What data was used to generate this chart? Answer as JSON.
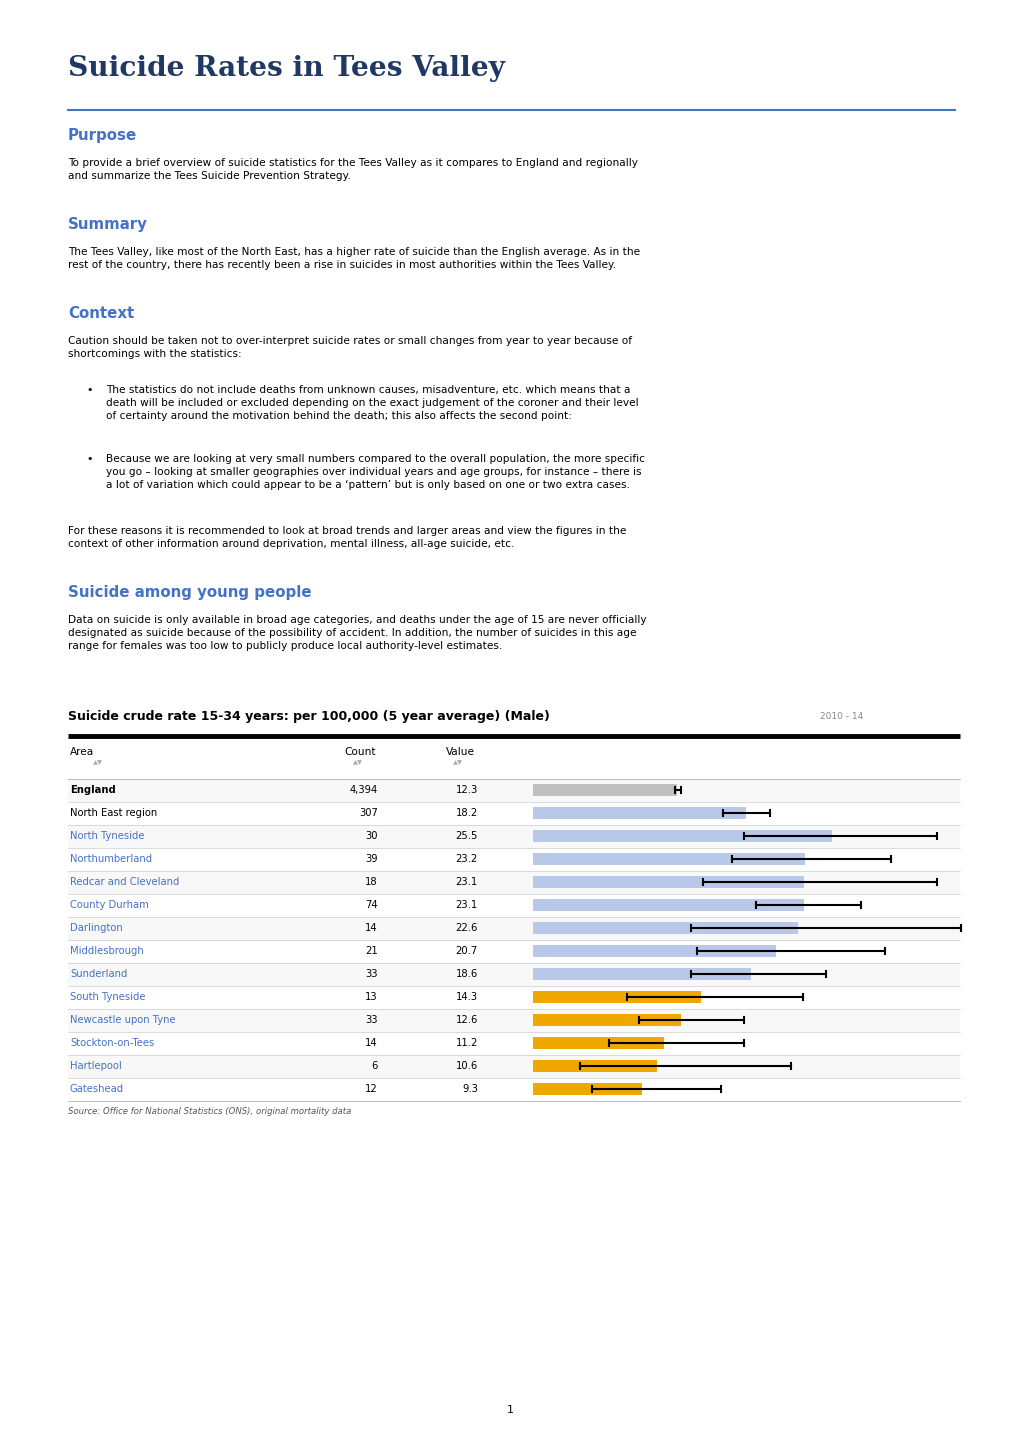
{
  "title": "Suicide Rates in Tees Valley",
  "title_color": "#1f3864",
  "separator_color": "#4472c4",
  "section_heading_color": "#4472c4",
  "body_text_color": "#000000",
  "page_bg": "#ffffff",
  "sections": [
    {
      "heading": "Purpose",
      "text": "To provide a brief overview of suicide statistics for the Tees Valley as it compares to England and regionally\nand summarize the Tees Suicide Prevention Strategy."
    },
    {
      "heading": "Summary",
      "text": "The Tees Valley, like most of the North East, has a higher rate of suicide than the English average. As in the\nrest of the country, there has recently been a rise in suicides in most authorities within the Tees Valley."
    },
    {
      "heading": "Context",
      "text": "Caution should be taken not to over-interpret suicide rates or small changes from year to year because of\nshortcomings with the statistics:",
      "bullets": [
        "The statistics do not include deaths from unknown causes, misadventure, etc. which means that a\ndeath will be included or excluded depending on the exact judgement of the coroner and their level\nof certainty around the motivation behind the death; this also affects the second point:",
        "Because we are looking at very small numbers compared to the overall population, the more specific\nyou go – looking at smaller geographies over individual years and age groups, for instance – there is\na lot of variation which could appear to be a ‘pattern’ but is only based on one or two extra cases."
      ],
      "posttext": "For these reasons it is recommended to look at broad trends and larger areas and view the figures in the\ncontext of other information around deprivation, mental illness, all-age suicide, etc."
    },
    {
      "heading": "Suicide among young people",
      "text": "Data on suicide is only available in broad age categories, and deaths under the age of 15 are never officially\ndesignated as suicide because of the possibility of accident. In addition, the number of suicides in this age\nrange for females was too low to publicly produce local authority-level estimates."
    }
  ],
  "chart_title": "Suicide crude rate 15-34 years: per 100,000 (5 year average) (Male)",
  "chart_year": "2010 - 14",
  "chart_data": [
    {
      "area": "England",
      "count": "4,394",
      "value": "12.3",
      "val_f": 12.3,
      "ci_lo": 12.1,
      "ci_hi": 12.6,
      "bar_color": "#c0c0c0",
      "area_bold": true,
      "area_color": "#000000"
    },
    {
      "area": "North East region",
      "count": "307",
      "value": "18.2",
      "val_f": 18.2,
      "ci_lo": 16.2,
      "ci_hi": 20.2,
      "bar_color": "#b8c8e8",
      "area_bold": false,
      "area_color": "#000000"
    },
    {
      "area": "North Tyneside",
      "count": "30",
      "value": "25.5",
      "val_f": 25.5,
      "ci_lo": 18.0,
      "ci_hi": 34.5,
      "bar_color": "#b8c8e8",
      "area_bold": false,
      "area_color": "#4472c4"
    },
    {
      "area": "Northumberland",
      "count": "39",
      "value": "23.2",
      "val_f": 23.2,
      "ci_lo": 17.0,
      "ci_hi": 30.5,
      "bar_color": "#b8c8e8",
      "area_bold": false,
      "area_color": "#4472c4"
    },
    {
      "area": "Redcar and Cleveland",
      "count": "18",
      "value": "23.1",
      "val_f": 23.1,
      "ci_lo": 14.5,
      "ci_hi": 34.5,
      "bar_color": "#b8c8e8",
      "area_bold": false,
      "area_color": "#4472c4"
    },
    {
      "area": "County Durham",
      "count": "74",
      "value": "23.1",
      "val_f": 23.1,
      "ci_lo": 19.0,
      "ci_hi": 28.0,
      "bar_color": "#b8c8e8",
      "area_bold": false,
      "area_color": "#4472c4"
    },
    {
      "area": "Darlington",
      "count": "14",
      "value": "22.6",
      "val_f": 22.6,
      "ci_lo": 13.5,
      "ci_hi": 36.5,
      "bar_color": "#b8c8e8",
      "area_bold": false,
      "area_color": "#4472c4"
    },
    {
      "area": "Middlesbrough",
      "count": "21",
      "value": "20.7",
      "val_f": 20.7,
      "ci_lo": 14.0,
      "ci_hi": 30.0,
      "bar_color": "#b8c8e8",
      "area_bold": false,
      "area_color": "#4472c4"
    },
    {
      "area": "Sunderland",
      "count": "33",
      "value": "18.6",
      "val_f": 18.6,
      "ci_lo": 13.5,
      "ci_hi": 25.0,
      "bar_color": "#b8c8e8",
      "area_bold": false,
      "area_color": "#4472c4"
    },
    {
      "area": "South Tyneside",
      "count": "13",
      "value": "14.3",
      "val_f": 14.3,
      "ci_lo": 8.0,
      "ci_hi": 23.0,
      "bar_color": "#f0a800",
      "area_bold": false,
      "area_color": "#4472c4"
    },
    {
      "area": "Newcastle upon Tyne",
      "count": "33",
      "value": "12.6",
      "val_f": 12.6,
      "ci_lo": 9.0,
      "ci_hi": 18.0,
      "bar_color": "#f0a800",
      "area_bold": false,
      "area_color": "#4472c4"
    },
    {
      "area": "Stockton-on-Tees",
      "count": "14",
      "value": "11.2",
      "val_f": 11.2,
      "ci_lo": 6.5,
      "ci_hi": 18.0,
      "bar_color": "#f0a800",
      "area_bold": false,
      "area_color": "#4472c4"
    },
    {
      "area": "Hartlepool",
      "count": "6",
      "value": "10.6",
      "val_f": 10.6,
      "ci_lo": 4.0,
      "ci_hi": 22.0,
      "bar_color": "#f0a800",
      "area_bold": false,
      "area_color": "#4472c4"
    },
    {
      "area": "Gateshead",
      "count": "12",
      "value": "9.3",
      "val_f": 9.3,
      "ci_lo": 5.0,
      "ci_hi": 16.0,
      "bar_color": "#f0a800",
      "area_bold": false,
      "area_color": "#4472c4"
    }
  ],
  "chart_source": "Source: Office for National Statistics (ONS), original mortality data",
  "page_number": "1"
}
